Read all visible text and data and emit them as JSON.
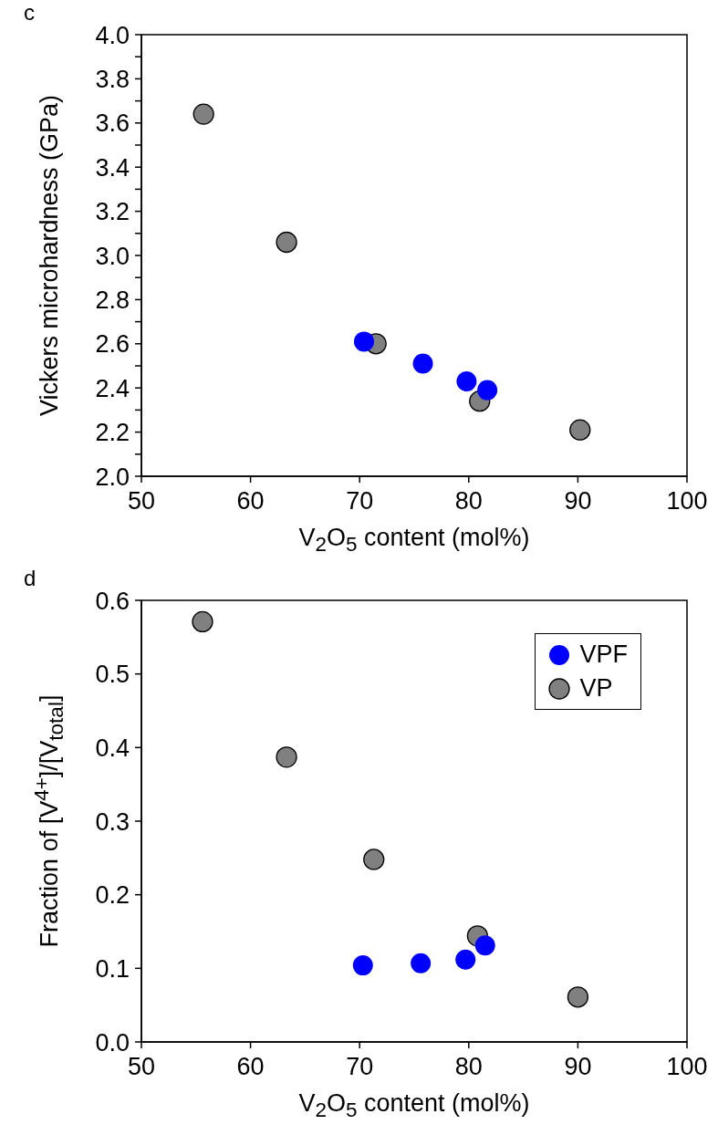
{
  "chart_data": [
    {
      "type": "scatter",
      "title": "c",
      "xlabel": "V$_{2}$O$_{5}$ content (mol%)",
      "ylabel": "Vickers microhardness (GPa)",
      "xlim": [
        50,
        100
      ],
      "xticks": [
        50,
        60,
        70,
        80,
        90,
        100
      ],
      "ylim": [
        2.0,
        4.0
      ],
      "yticks": [
        {
          "value": 2.0,
          "label": "2.0"
        },
        {
          "value": 2.1,
          "label": null
        },
        {
          "value": 2.2,
          "label": "2.2"
        },
        {
          "value": 2.3,
          "label": null
        },
        {
          "value": 2.4,
          "label": "2.4"
        },
        {
          "value": 2.5,
          "label": null
        },
        {
          "value": 2.6,
          "label": "2.6"
        },
        {
          "value": 2.7,
          "label": null
        },
        {
          "value": 2.8,
          "label": "2.8"
        },
        {
          "value": 2.9,
          "label": null
        },
        {
          "value": 3.0,
          "label": "3.0"
        },
        {
          "value": 3.1,
          "label": null
        },
        {
          "value": 3.2,
          "label": "3.2"
        },
        {
          "value": 3.3,
          "label": null
        },
        {
          "value": 3.4,
          "label": "3.4"
        },
        {
          "value": 3.5,
          "label": null
        },
        {
          "value": 3.6,
          "label": "3.6"
        },
        {
          "value": 3.7,
          "label": null
        },
        {
          "value": 3.8,
          "label": "3.8"
        },
        {
          "value": 3.9,
          "label": null
        },
        {
          "value": 4.0,
          "label": "4.0"
        }
      ],
      "marker": "circle",
      "grid": false,
      "legend": false,
      "series": [
        {
          "color": "#0000ff",
          "x": [
            70.4,
            75.8,
            79.8,
            81.7
          ],
          "values": [
            2.61,
            2.51,
            2.43,
            2.39
          ]
        },
        {
          "color": "#808080",
          "x": [
            55.7,
            63.3,
            71.5,
            81.0,
            90.2
          ],
          "values": [
            3.64,
            3.06,
            2.6,
            2.34,
            2.21
          ]
        }
      ]
    },
    {
      "type": "scatter",
      "title": "d",
      "xlabel": "V$_{2}$O$_{5}$ content (mol%)",
      "ylabel": "Fraction of [V$^{4+}$]/[V$_{total}$]",
      "xlim": [
        50,
        100
      ],
      "xticks": [
        50,
        60,
        70,
        80,
        90,
        100
      ],
      "ylim": [
        0,
        0.6
      ],
      "yticks": [
        {
          "value": 0,
          "label": "0.0"
        },
        0.1,
        0.2,
        0.3,
        0.4,
        0.5,
        0.6
      ],
      "marker": "circle",
      "grid": false,
      "legend": "top right",
      "series": [
        {
          "name": "VPF",
          "color": "#0000ff",
          "x": [
            70.3,
            75.6,
            79.7,
            81.5
          ],
          "values": [
            0.104,
            0.107,
            0.112,
            0.131
          ]
        },
        {
          "name": "VP",
          "color": "#808080",
          "x": [
            55.6,
            63.3,
            71.3,
            80.8,
            90.0
          ],
          "values": [
            0.571,
            0.387,
            0.248,
            0.144,
            0.061
          ]
        }
      ]
    }
  ]
}
